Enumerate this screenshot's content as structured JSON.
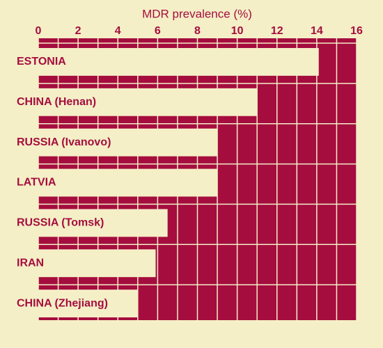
{
  "chart_data": {
    "type": "barh",
    "title": "MDR prevalence (%)",
    "categories": [
      "ESTONIA",
      "CHINA (Henan)",
      "RUSSIA (Ivanovo)",
      "LATVIA",
      "RUSSIA (Tomsk)",
      "IRAN",
      "CHINA (Zhejiang)"
    ],
    "values": [
      14.1,
      11.0,
      9.0,
      9.0,
      6.5,
      5.9,
      5.0
    ],
    "xlim": [
      0,
      16
    ],
    "xticks": [
      0,
      2,
      4,
      6,
      8,
      10,
      12,
      14,
      16
    ],
    "grid_xticks": [
      0,
      1,
      2,
      3,
      4,
      5,
      6,
      7,
      8,
      9,
      10,
      11,
      12,
      13,
      14,
      15,
      16
    ],
    "grid": true,
    "color": "#f4efc6",
    "plot_color": "#a50d3f",
    "text_color": "#a50d3f",
    "background": "#f4efc6"
  }
}
